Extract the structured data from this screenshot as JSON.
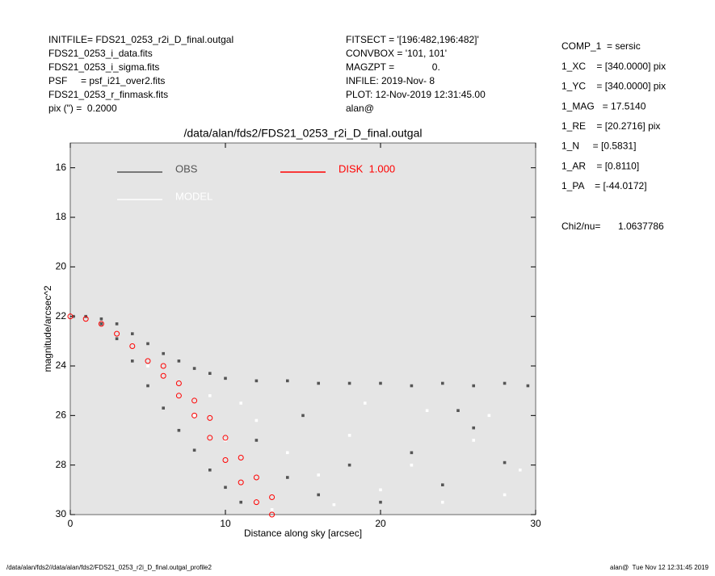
{
  "header": {
    "left": [
      "INITFILE= FDS21_0253_r2i_D_final.outgal",
      "FDS21_0253_i_data.fits",
      "FDS21_0253_i_sigma.fits",
      "PSF     = psf_i21_over2.fits",
      "FDS21_0253_r_finmask.fits",
      "pix (\") =  0.2000"
    ],
    "middle": [
      "FITSECT = '[196:482,196:482]'",
      "CONVBOX = '101, 101'",
      "MAGZPT =              0.",
      "INFILE: 2019-Nov- 8",
      "PLOT: 12-Nov-2019 12:31:45.00",
      "alan@"
    ],
    "right": [
      "COMP_1  = sersic",
      "1_XC    = [340.0000] pix",
      "1_YC    = [340.0000] pix",
      "1_MAG   = 17.5140",
      "1_RE    = [20.2716] pix",
      "1_N     = [0.5831]",
      "1_AR    = [0.8110]",
      "1_PA    = [-44.0172]"
    ],
    "chi_label": "Chi2/nu=",
    "chi_value": "1.0637786"
  },
  "footer": {
    "left": "/data/alan/fds2//data/alan/fds2/FDS21_0253_r2i_D_final.outgal_profile2",
    "right": "alan@  Tue Nov 12 12:31:45 2019"
  },
  "chart_data": {
    "type": "scatter",
    "title": "/data/alan/fds2/FDS21_0253_r2i_D_final.outgal",
    "x_label": "Distance along sky [arcsec]",
    "y_label": "magnitude/arcsec^2",
    "xlim": [
      0,
      30
    ],
    "ylim": [
      15,
      30
    ],
    "y_inverted": true,
    "xticks": [
      0,
      10,
      20,
      30
    ],
    "yticks": [
      16,
      18,
      20,
      22,
      24,
      26,
      28,
      30
    ],
    "series": [
      {
        "name": "OBS",
        "color": "#555555",
        "x": [
          0.2,
          1,
          2,
          3,
          4,
          5,
          6,
          7,
          8,
          9,
          10,
          12,
          14,
          16,
          18,
          20,
          22,
          24,
          26,
          28,
          29.5,
          2,
          3,
          4,
          5,
          6,
          7,
          8,
          9,
          10,
          11,
          12,
          14,
          16,
          18,
          20,
          22,
          24,
          26,
          28,
          15,
          25
        ],
        "values": [
          22.0,
          22.0,
          22.1,
          22.3,
          22.7,
          23.1,
          23.5,
          23.8,
          24.1,
          24.3,
          24.5,
          24.6,
          24.6,
          24.7,
          24.7,
          24.7,
          24.8,
          24.7,
          24.8,
          24.7,
          24.8,
          22.3,
          22.9,
          23.8,
          24.8,
          25.7,
          26.6,
          27.4,
          28.2,
          28.9,
          29.5,
          27,
          28.5,
          29.2,
          28,
          29.5,
          27.5,
          28.8,
          26.5,
          27.9,
          26,
          25.8
        ]
      },
      {
        "name": "MODEL",
        "color": "#ffffff",
        "x": [
          5,
          8,
          10,
          12,
          14,
          16,
          18,
          20,
          22,
          24,
          26,
          28,
          13,
          17,
          19,
          23,
          27,
          29,
          11,
          9
        ],
        "values": [
          24,
          26,
          27,
          26.2,
          27.5,
          28.4,
          26.8,
          29,
          28,
          29.5,
          27,
          29.2,
          29.8,
          29.6,
          25.5,
          25.8,
          26,
          28.2,
          25.5,
          25.2
        ]
      },
      {
        "name": "DISK  1.000",
        "color": "#ff0000",
        "x": [
          0,
          1,
          2,
          3,
          4,
          5,
          6,
          7,
          8,
          9,
          10,
          11,
          12,
          13,
          6,
          7,
          8,
          9,
          10,
          11,
          12,
          13
        ],
        "values": [
          22.0,
          22.1,
          22.3,
          22.7,
          23.2,
          23.8,
          24.4,
          25.2,
          26.0,
          26.9,
          27.8,
          28.7,
          29.5,
          30,
          24.0,
          24.7,
          25.4,
          26.1,
          26.9,
          27.7,
          28.5,
          29.3
        ]
      }
    ]
  }
}
